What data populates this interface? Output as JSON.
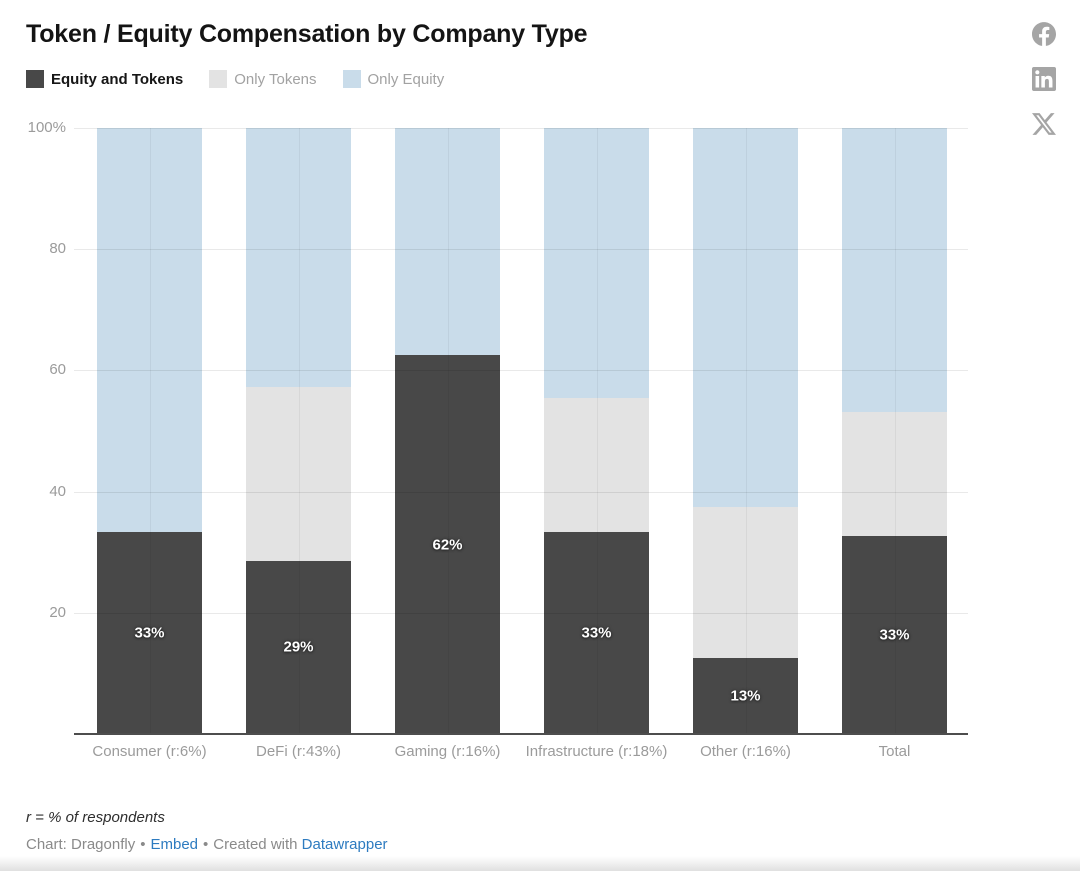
{
  "title": "Token / Equity Compensation by Company Type",
  "share_icons": [
    "facebook-icon",
    "linkedin-icon",
    "x-icon"
  ],
  "legend": [
    {
      "label": "Equity and Tokens",
      "color": "#484848",
      "active": true
    },
    {
      "label": "Only Tokens",
      "color": "#e3e3e3",
      "active": false
    },
    {
      "label": "Only Equity",
      "color": "#c9dcea",
      "active": false
    }
  ],
  "chart_data": {
    "type": "bar",
    "subtype": "stacked-column-100",
    "title": "Token / Equity Compensation by Company Type",
    "categories": [
      "Consumer (r:6%)",
      "DeFi (r:43%)",
      "Gaming (r:16%)",
      "Infrastructure (r:18%)",
      "Other (r:16%)",
      "Total"
    ],
    "series": [
      {
        "name": "Equity and Tokens",
        "color": "#484848",
        "values": [
          33.3,
          28.6,
          62.5,
          33.3,
          12.5,
          32.7
        ]
      },
      {
        "name": "Only Tokens",
        "color": "#e3e3e3",
        "values": [
          0,
          28.6,
          0,
          22.2,
          25.0,
          20.4
        ]
      },
      {
        "name": "Only Equity",
        "color": "#c9dcea",
        "values": [
          66.7,
          42.8,
          37.5,
          44.5,
          62.5,
          46.9
        ]
      }
    ],
    "bar_labels": [
      "33%",
      "29%",
      "62%",
      "33%",
      "13%",
      "33%"
    ],
    "y_ticks": [
      {
        "value": 100,
        "label": "100%"
      },
      {
        "value": 80,
        "label": "80"
      },
      {
        "value": 60,
        "label": "60"
      },
      {
        "value": 40,
        "label": "40"
      },
      {
        "value": 20,
        "label": "20"
      }
    ],
    "ylim": [
      0,
      100
    ],
    "grid": true,
    "legend_position": "top-left",
    "value_label_color": "#ffffff"
  },
  "footer": {
    "footnote": "r = % of respondents",
    "credit_prefix": "Chart: Dragonfly",
    "bullet": "•",
    "embed_link": "Embed",
    "created_with": "Created with",
    "datawrapper_link": "Datawrapper"
  }
}
